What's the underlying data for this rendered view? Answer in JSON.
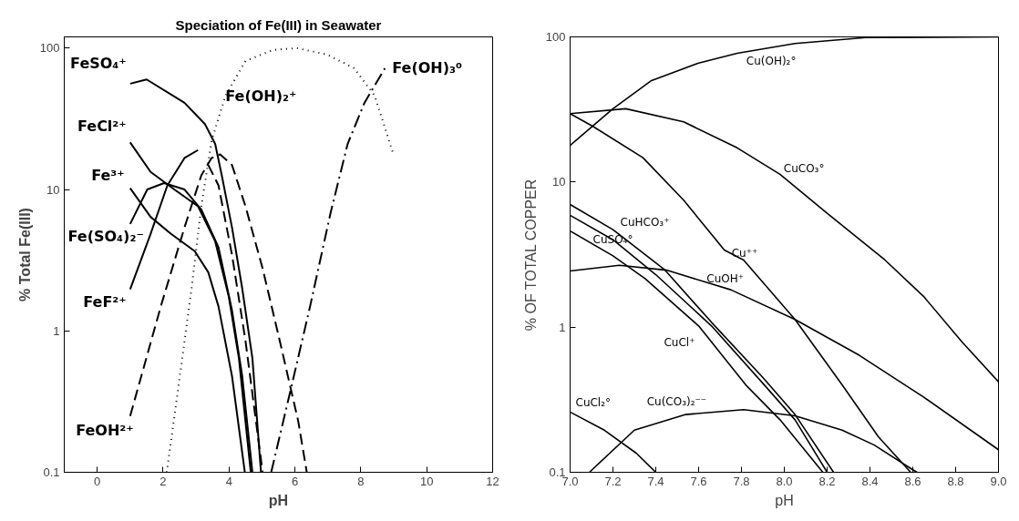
{
  "chart_data": [
    {
      "type": "line",
      "title": "Speciation of Fe(III) in Seawater",
      "xlabel": "pH",
      "ylabel": "% Total Fe(III)",
      "log": "y",
      "grid": false,
      "xlim": [
        -1,
        12
      ],
      "xticks": [
        0,
        2,
        4,
        6,
        8,
        10,
        12
      ],
      "ylim": [
        0.1,
        120
      ],
      "yticks": [
        0.1,
        1,
        10,
        100
      ],
      "series": [
        {
          "name": "FeSO₄⁺",
          "color": "#000000",
          "line_style": "solid",
          "x": [
            1.0,
            1.5,
            2.65,
            3.27,
            3.58,
            3.78,
            4.09,
            4.4,
            4.71,
            4.97
          ],
          "values": [
            56,
            60,
            41,
            29,
            21,
            12.6,
            5.4,
            2.0,
            0.64,
            0.1
          ]
        },
        {
          "name": "FeCl²⁺",
          "color": "#000000",
          "line_style": "solid",
          "x": [
            1.0,
            1.62,
            2.34,
            3.06,
            3.58,
            3.99,
            4.3,
            4.66
          ],
          "values": [
            21.5,
            13.3,
            10,
            7.6,
            4.3,
            1.76,
            0.64,
            0.1
          ]
        },
        {
          "name": "Fe³⁺",
          "color": "#000000",
          "line_style": "solid",
          "x": [
            1.0,
            1.62,
            2.24,
            2.96,
            3.37,
            3.68,
            4.09,
            4.48
          ],
          "values": [
            10.2,
            6.4,
            4.85,
            3.66,
            2.6,
            1.49,
            0.48,
            0.1
          ]
        },
        {
          "name": "Fe(SO₄)₂⁻",
          "color": "#000000",
          "line_style": "solid",
          "x": [
            1.0,
            1.52,
            2.03,
            2.65,
            3.16,
            3.68,
            4.09,
            4.4,
            4.71
          ],
          "values": [
            5.7,
            10,
            11.1,
            10,
            7.2,
            3.9,
            1.4,
            0.48,
            0.1
          ]
        },
        {
          "name": "FeF²⁺",
          "color": "#000000",
          "line_style": "solid",
          "x": [
            1.0,
            1.62,
            2.13,
            2.65,
            3.06
          ],
          "values": [
            1.97,
            4.85,
            10.7,
            16.7,
            19
          ]
        },
        {
          "name": "FeOH²⁺",
          "color": "#000000",
          "line_style": "dashed",
          "x": [
            1.0,
            1.93,
            2.65,
            3.16,
            3.47,
            3.73,
            4.09,
            4.5,
            5.02,
            5.54,
            6.1,
            6.36
          ],
          "values": [
            0.25,
            1.49,
            5.4,
            12.6,
            16.7,
            17.7,
            14.9,
            7.6,
            2.76,
            0.85,
            0.23,
            0.1
          ]
        },
        {
          "color": "#000000",
          "line_style": "dashed",
          "x": [
            3.37,
            3.68,
            4.09,
            4.5,
            5.02
          ],
          "values": [
            14.9,
            10.7,
            3.46,
            0.85,
            0.1
          ]
        },
        {
          "name": "Fe(OH)₂⁺",
          "color": "#000000",
          "line_style": "dotted",
          "x": [
            2.11,
            2.44,
            2.86,
            3.16,
            3.47,
            3.89,
            4.5,
            5.33,
            6.05,
            6.98,
            7.8,
            8.42,
            8.99
          ],
          "values": [
            0.1,
            0.365,
            1.97,
            7.6,
            22,
            46,
            81,
            97,
            100,
            90,
            72,
            46,
            17.7
          ]
        },
        {
          "name": "Fe(OH)₃⁰",
          "color": "#000000",
          "line_style": "dashdot",
          "x": [
            5.28,
            5.85,
            6.46,
            7.08,
            7.6,
            8.11,
            8.73
          ],
          "values": [
            0.1,
            0.365,
            1.49,
            6.8,
            21,
            41,
            72
          ]
        }
      ]
    },
    {
      "type": "line",
      "xlabel": "pH",
      "ylabel": "% OF TOTAL COPPER",
      "log": "y",
      "grid": false,
      "xlim": [
        7.0,
        9.0
      ],
      "xticks": [
        {
          "value": 7.0,
          "label": "7.0"
        },
        7.2,
        7.4,
        7.6,
        7.8,
        {
          "value": 8.0,
          "label": "8.0"
        },
        8.2,
        8.4,
        8.6,
        8.8,
        {
          "value": 9.0,
          "label": "9.0"
        }
      ],
      "ylim": [
        0.1,
        100
      ],
      "yticks": [
        0.1,
        1,
        10,
        100
      ],
      "series": [
        {
          "name": "Cu(OH)₂°",
          "color": "#000000",
          "line_style": "solid",
          "x": [
            7.0,
            7.2,
            7.38,
            7.6,
            7.78,
            8.05,
            8.38,
            9.0
          ],
          "values": [
            17.9,
            32,
            50,
            66,
            77,
            90,
            99,
            100
          ]
        },
        {
          "name": "CuCO₃°",
          "color": "#000000",
          "line_style": "solid",
          "x": [
            7.0,
            7.26,
            7.53,
            7.78,
            7.98,
            8.2,
            8.47,
            8.65,
            8.83,
            9.0
          ],
          "values": [
            29.6,
            32,
            26,
            17.2,
            11.3,
            6.1,
            2.9,
            1.63,
            0.79,
            0.42
          ]
        },
        {
          "name": "Cu⁺⁺",
          "color": "#000000",
          "line_style": "solid",
          "x": [
            7.0,
            7.11,
            7.34,
            7.53,
            7.72,
            7.81,
            8.05,
            8.27,
            8.44,
            8.59
          ],
          "values": [
            29.6,
            24,
            14.7,
            7.5,
            3.4,
            2.9,
            1.13,
            0.4,
            0.175,
            0.1
          ]
        },
        {
          "name": "CuOH⁺",
          "color": "#000000",
          "line_style": "solid",
          "x": [
            7.0,
            7.23,
            7.45,
            7.75,
            8.05,
            8.35,
            8.65,
            9.0
          ],
          "values": [
            2.44,
            2.67,
            2.47,
            1.81,
            1.13,
            0.64,
            0.33,
            0.143
          ]
        },
        {
          "name": "CuHCO₃⁺",
          "color": "#000000",
          "line_style": "solid",
          "x": [
            7.0,
            7.2,
            7.44,
            7.66,
            7.9,
            8.05,
            8.23
          ],
          "values": [
            7.0,
            4.7,
            2.5,
            1.08,
            0.45,
            0.25,
            0.1
          ]
        },
        {
          "name": "CuSO₄°",
          "color": "#000000",
          "line_style": "solid",
          "x": [
            7.0,
            7.2,
            7.4,
            7.66,
            7.9,
            8.05,
            8.2
          ],
          "values": [
            5.9,
            4.0,
            2.3,
            1.02,
            0.41,
            0.23,
            0.1
          ]
        },
        {
          "name": "CuCl⁺",
          "color": "#000000",
          "line_style": "solid",
          "x": [
            7.0,
            7.2,
            7.35,
            7.6,
            7.82,
            7.98,
            8.18
          ],
          "values": [
            4.6,
            3.1,
            2.16,
            1.02,
            0.4,
            0.23,
            0.1
          ]
        },
        {
          "name": "Cu(CO₃)₂⁻⁻",
          "color": "#000000",
          "line_style": "solid",
          "x": [
            7.09,
            7.3,
            7.54,
            7.81,
            8.05,
            8.27,
            8.42,
            8.6,
            8.62
          ],
          "values": [
            0.1,
            0.195,
            0.25,
            0.27,
            0.245,
            0.195,
            0.154,
            0.104,
            0.1
          ]
        },
        {
          "name": "CuCl₂°",
          "color": "#000000",
          "line_style": "solid",
          "x": [
            7.0,
            7.16,
            7.31,
            7.4
          ],
          "values": [
            0.26,
            0.195,
            0.135,
            0.1
          ]
        }
      ]
    }
  ]
}
